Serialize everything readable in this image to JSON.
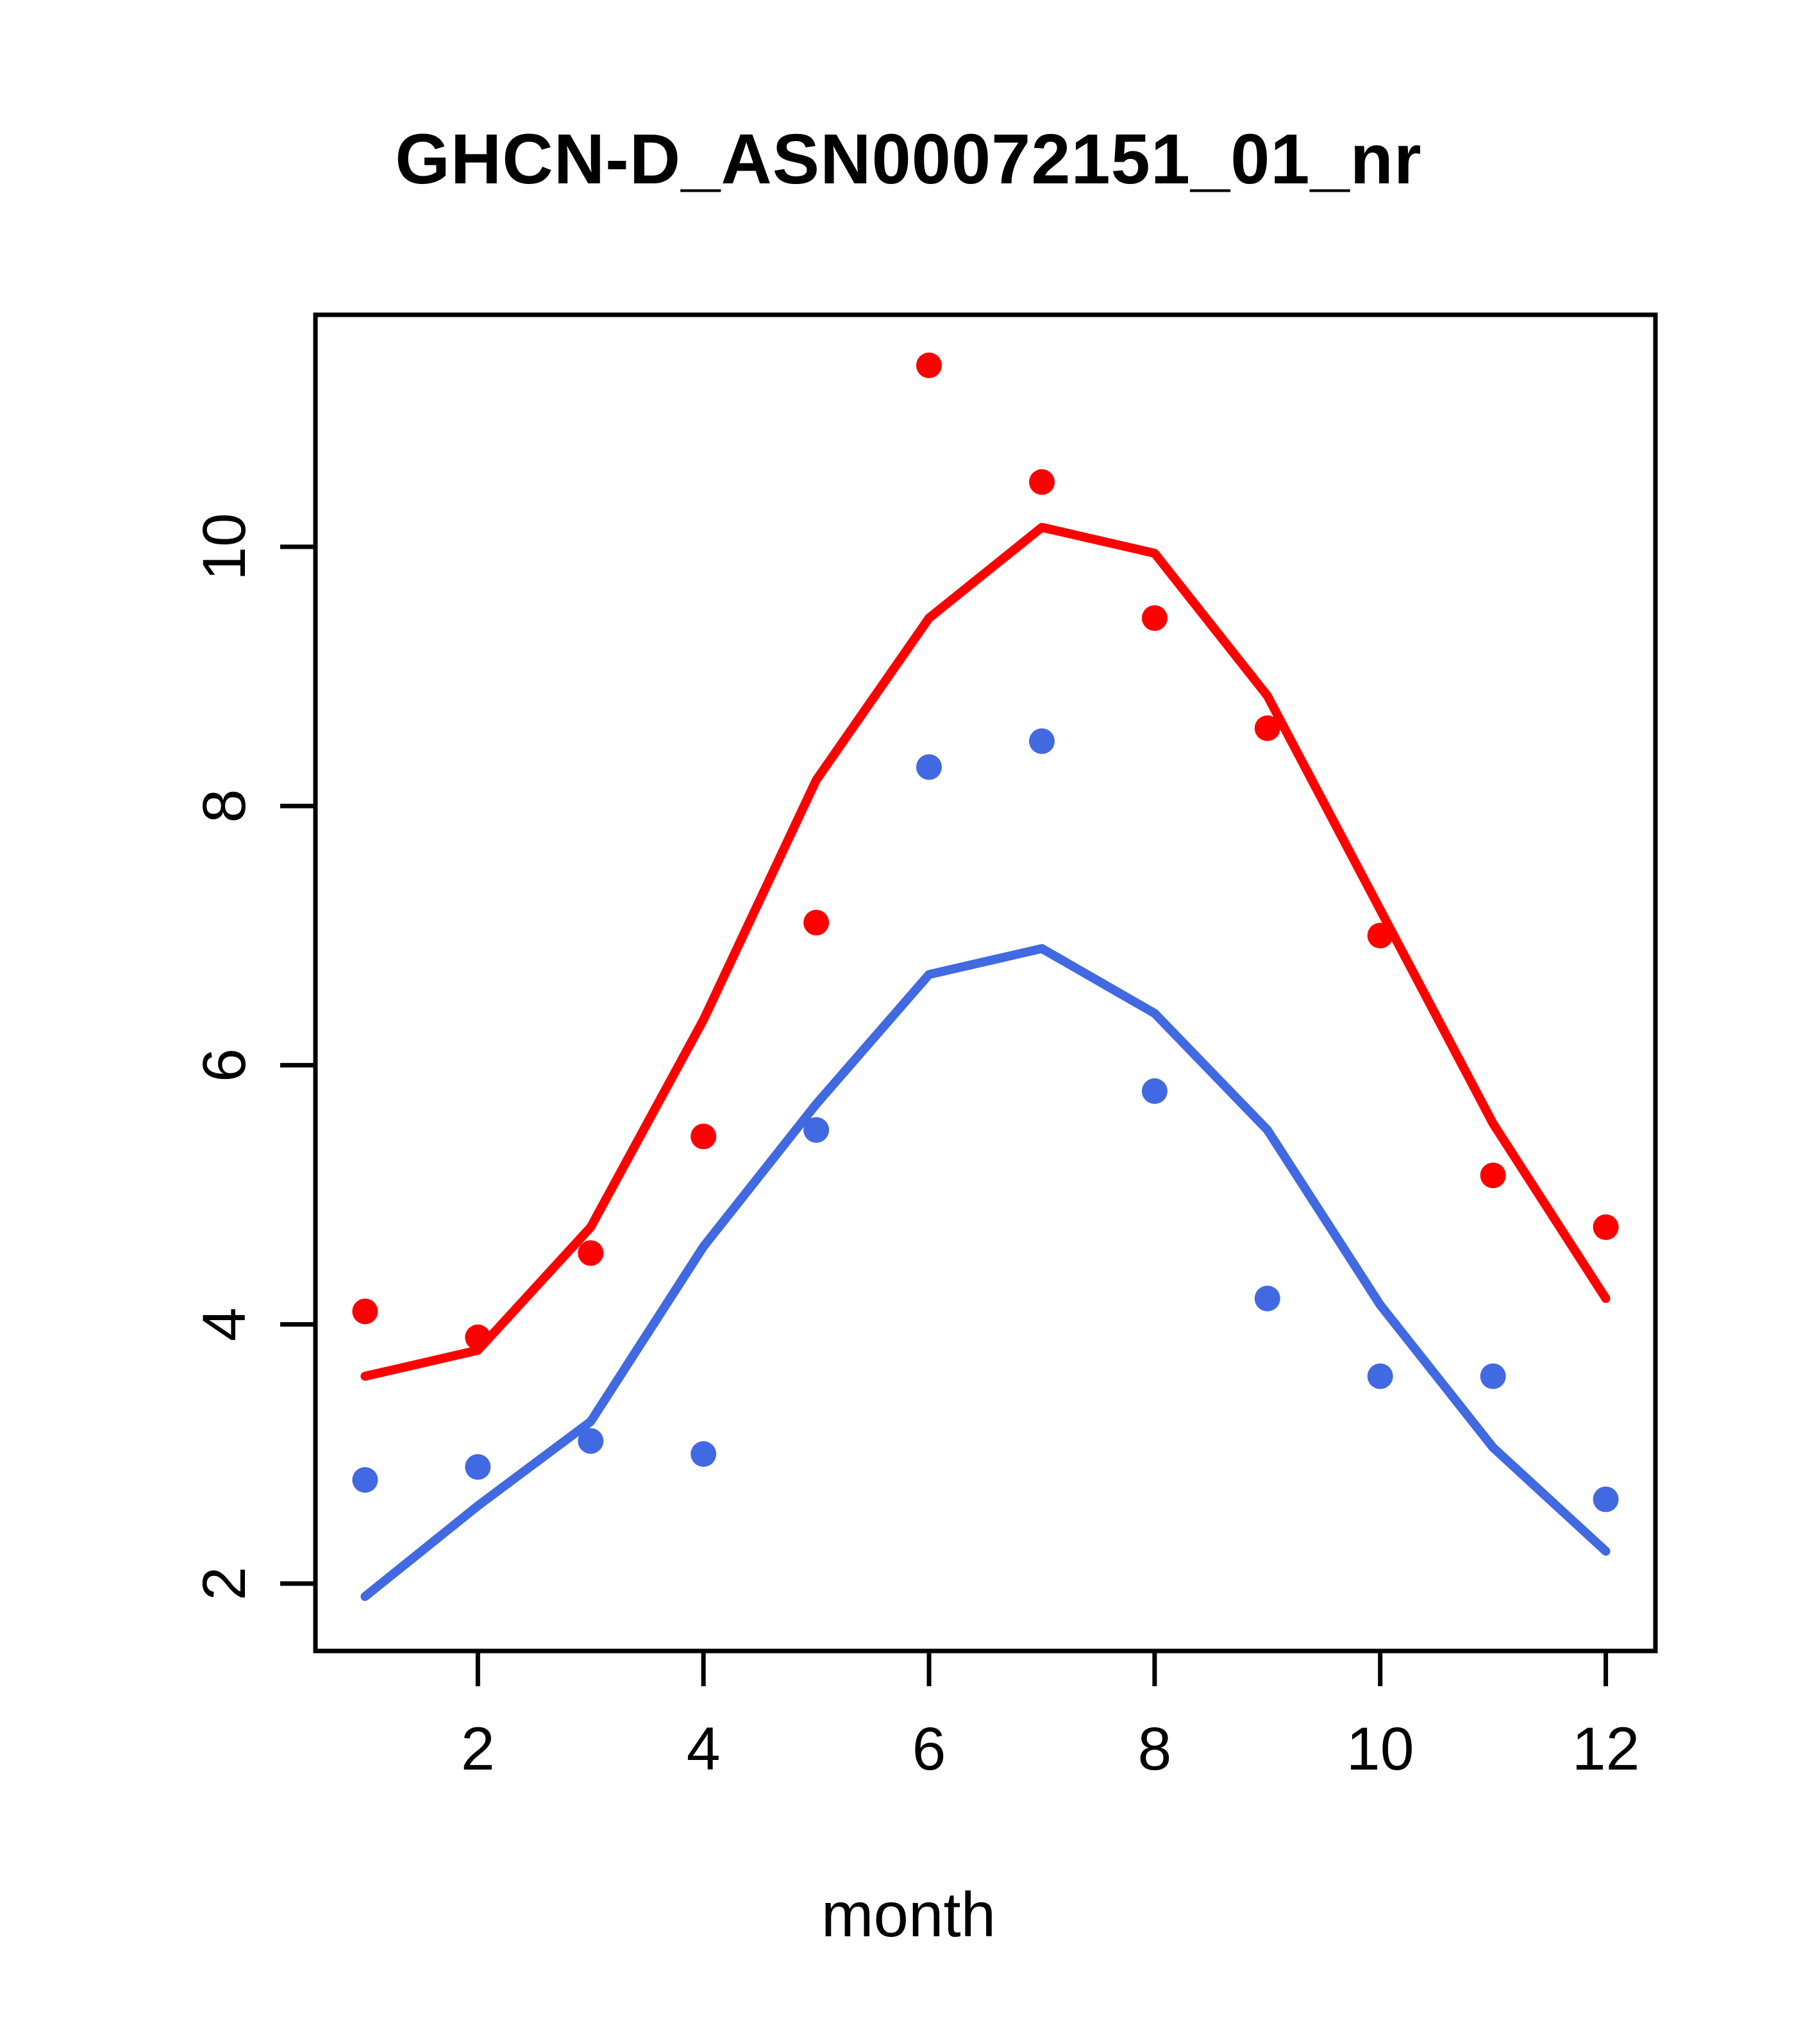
{
  "title": "GHCN-D_ASN00072151_01_nr",
  "colors": {
    "red_series": "#ff0000",
    "blue_series": "#4169e1",
    "axis": "#000000",
    "background": "#ffffff"
  },
  "chart_data": {
    "type": "scatter",
    "title": "GHCN-D_ASN00072151_01_nr",
    "xlabel": "month",
    "ylabel": "",
    "x": [
      1,
      2,
      3,
      4,
      5,
      6,
      7,
      8,
      9,
      10,
      11,
      12
    ],
    "x_ticks": [
      2,
      4,
      6,
      8,
      10,
      12
    ],
    "y_ticks": [
      2,
      4,
      6,
      8,
      10
    ],
    "xlim": [
      0.56,
      12.44
    ],
    "ylim": [
      1.48,
      11.79
    ],
    "grid": false,
    "legend": "none",
    "series": [
      {
        "name": "red-points",
        "kind": "scatter",
        "color": "#ff0000",
        "values": [
          4.1,
          3.9,
          4.55,
          5.45,
          7.1,
          11.4,
          10.5,
          9.45,
          8.6,
          7.0,
          5.15,
          4.75
        ]
      },
      {
        "name": "red-line",
        "kind": "line",
        "color": "#ff0000",
        "values": [
          3.6,
          3.8,
          4.75,
          6.35,
          8.2,
          9.45,
          10.15,
          9.95,
          8.85,
          7.2,
          5.55,
          4.2
        ]
      },
      {
        "name": "blue-points",
        "kind": "scatter",
        "color": "#4169e1",
        "values": [
          2.8,
          2.9,
          3.1,
          3.0,
          5.5,
          8.3,
          8.5,
          5.8,
          4.2,
          3.6,
          3.6,
          2.65
        ]
      },
      {
        "name": "blue-line",
        "kind": "line",
        "color": "#4169e1",
        "values": [
          1.9,
          2.6,
          3.25,
          4.6,
          5.7,
          6.7,
          6.9,
          6.4,
          5.5,
          4.15,
          3.05,
          2.25
        ]
      }
    ]
  }
}
